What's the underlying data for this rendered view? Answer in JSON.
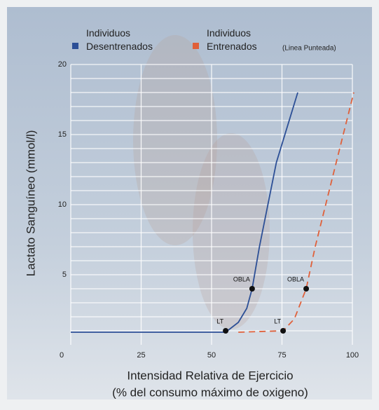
{
  "chart_data": {
    "type": "line",
    "ylabel": "Lactato Sanguíneo (mmol/l)",
    "xlabel": [
      "Intensidad Relativa de Ejercicio",
      "(% del consumo máximo de oxigeno)"
    ],
    "legend_note": "(Linea Punteada)",
    "xlim": [
      0,
      100
    ],
    "ylim": [
      0,
      20
    ],
    "xticks": [
      0,
      25,
      50,
      75,
      100
    ],
    "yticks": [
      5,
      10,
      15,
      20
    ],
    "y_grid_lines": [
      1,
      2,
      3,
      4,
      5,
      6,
      7,
      8,
      9,
      10,
      11,
      12,
      13,
      14,
      15,
      16,
      17,
      18,
      19,
      20
    ],
    "grid": true,
    "series": [
      {
        "name": "Individuos Desentrenados",
        "color": "#2c4f96",
        "dashed": false,
        "x": [
          0,
          55,
          59.5,
          62.5,
          64.4,
          67,
          73,
          80.6
        ],
        "values": [
          0.9,
          0.9,
          1.6,
          2.6,
          4,
          7,
          13,
          18
        ]
      },
      {
        "name": "Individuos Entrenados",
        "color": "#e0603a",
        "dashed": true,
        "x": [
          59.5,
          75.4,
          79.4,
          83.6,
          86.8,
          94,
          100.5
        ],
        "values": [
          0.9,
          1,
          1.85,
          4,
          7,
          12.8,
          18
        ]
      }
    ],
    "annotations": [
      {
        "text": "LT",
        "x": 55,
        "y": 1
      },
      {
        "text": "OBLA",
        "x": 64.4,
        "y": 4
      },
      {
        "text": "LT",
        "x": 75.4,
        "y": 1
      },
      {
        "text": "OBLA",
        "x": 83.6,
        "y": 4
      }
    ]
  }
}
